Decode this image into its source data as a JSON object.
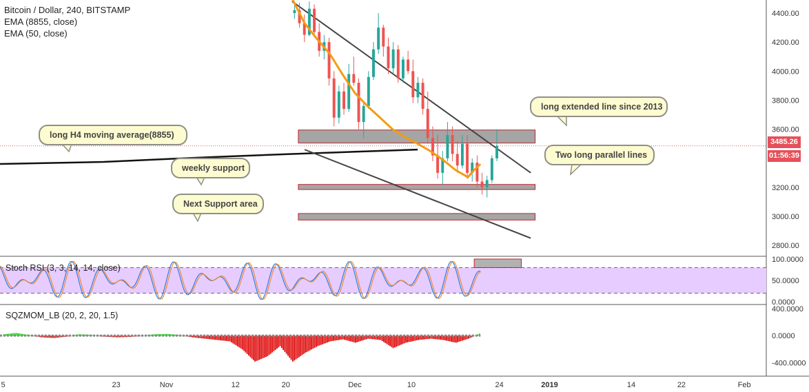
{
  "legend": {
    "symbol": "Bitcoin / Dollar, 240, BITSTAMP",
    "ema_long": "EMA (8855, close)",
    "ema_short": "EMA (50, close)"
  },
  "colors": {
    "up": "#26a69a",
    "down": "#ef5350",
    "ema50": "#f39c12",
    "ema8855": "#111111",
    "zone_fill": "#a5a5a5",
    "zone_border": "#c0232c",
    "price_tag": "#e5505a",
    "timer_tag": "#e5505a",
    "rsi_band": "#e6ccff",
    "sqz_pos": "#19e619",
    "sqz_neg": "#e01010"
  },
  "annotations": {
    "h4_ma": "long H4 moving average(8855)",
    "weekly_support": "weekly support",
    "next_support": "Next Support area",
    "line_2013": "long extended line since 2013",
    "parallel": "Two long parallel lines"
  },
  "price_axis": {
    "last_price": "3485.26",
    "countdown": "01:56:39"
  },
  "panels": {
    "stoch": "Stoch RSI (3, 3, 14, 14, close)",
    "sqz": "SQZMOM_LB (20, 2, 20, 1.5)"
  },
  "chart_data": {
    "type": "candlestick",
    "title": "Bitcoin / Dollar, 240, BITSTAMP",
    "price_range": [
      2730,
      4490
    ],
    "price_ticks": [
      "4400.00",
      "4200.00",
      "4000.00",
      "3800.00",
      "3600.00",
      "3400.00",
      "3200.00",
      "3000.00",
      "2800.00"
    ],
    "price_tick_values": [
      4400,
      4200,
      4000,
      3800,
      3600,
      3400,
      3200,
      3000,
      2800
    ],
    "x_ticks": [
      "5",
      "23",
      "Nov",
      "12",
      "20",
      "Dec",
      "10",
      "24",
      "2019",
      "14",
      "22",
      "Feb"
    ],
    "x_tick_days": [
      -26,
      -8,
      0,
      11,
      19,
      30,
      39,
      53,
      61,
      74,
      82,
      92
    ],
    "x_range_days": [
      -26.5,
      95.5
    ],
    "candle_day_range": [
      20,
      53
    ],
    "candles_ohlc": [
      [
        4400,
        4480,
        4360,
        4420
      ],
      [
        4420,
        4470,
        4300,
        4330
      ],
      [
        4330,
        4390,
        4200,
        4250
      ],
      [
        4250,
        4480,
        4240,
        4430
      ],
      [
        4430,
        4460,
        4250,
        4270
      ],
      [
        4270,
        4330,
        4100,
        4140
      ],
      [
        4140,
        4250,
        4080,
        4200
      ],
      [
        4200,
        4230,
        3900,
        3950
      ],
      [
        3950,
        4000,
        3620,
        3680
      ],
      [
        3680,
        3900,
        3640,
        3860
      ],
      [
        3860,
        3920,
        3700,
        3740
      ],
      [
        3740,
        4050,
        3720,
        3980
      ],
      [
        3980,
        4100,
        3900,
        3920
      ],
      [
        3920,
        3950,
        3600,
        3650
      ],
      [
        3650,
        3780,
        3540,
        3760
      ],
      [
        3760,
        4000,
        3740,
        3960
      ],
      [
        3960,
        4200,
        3940,
        4150
      ],
      [
        4150,
        4400,
        4120,
        4300
      ],
      [
        4300,
        4320,
        4100,
        4170
      ],
      [
        4170,
        4230,
        3980,
        4020
      ],
      [
        4020,
        4200,
        3980,
        4150
      ],
      [
        4150,
        4180,
        3920,
        3950
      ],
      [
        3950,
        4100,
        3920,
        4080
      ],
      [
        4080,
        4140,
        3980,
        4000
      ],
      [
        4000,
        4080,
        3780,
        3820
      ],
      [
        3820,
        3960,
        3780,
        3920
      ],
      [
        3920,
        3950,
        3700,
        3740
      ],
      [
        3740,
        3860,
        3500,
        3540
      ],
      [
        3540,
        3620,
        3380,
        3420
      ],
      [
        3420,
        3560,
        3260,
        3300
      ],
      [
        3300,
        3450,
        3220,
        3400
      ],
      [
        3400,
        3650,
        3380,
        3560
      ],
      [
        3560,
        3620,
        3380,
        3430
      ],
      [
        3430,
        3520,
        3300,
        3350
      ],
      [
        3350,
        3560,
        3330,
        3500
      ],
      [
        3500,
        3560,
        3260,
        3300
      ],
      [
        3300,
        3400,
        3240,
        3370
      ],
      [
        3370,
        3420,
        3200,
        3240
      ],
      [
        3240,
        3300,
        3150,
        3200
      ],
      [
        3200,
        3280,
        3130,
        3250
      ],
      [
        3250,
        3420,
        3230,
        3400
      ],
      [
        3400,
        3600,
        3380,
        3485.26
      ]
    ],
    "ema50": [
      [
        20,
        4500
      ],
      [
        22,
        4330
      ],
      [
        24,
        4220
      ],
      [
        26,
        4120
      ],
      [
        28,
        3980
      ],
      [
        30,
        3850
      ],
      [
        32,
        3760
      ],
      [
        34,
        3680
      ],
      [
        36,
        3600
      ],
      [
        38,
        3545
      ],
      [
        40,
        3500
      ],
      [
        42,
        3450
      ],
      [
        44,
        3390
      ],
      [
        46,
        3320
      ],
      [
        48,
        3270
      ],
      [
        49,
        3320
      ],
      [
        50,
        3360
      ]
    ],
    "ema8855": [
      [
        -26.5,
        3361
      ],
      [
        -10,
        3375
      ],
      [
        0,
        3395
      ],
      [
        10,
        3413
      ],
      [
        20,
        3430
      ],
      [
        32,
        3448
      ],
      [
        40,
        3460
      ]
    ],
    "trendlines": [
      {
        "name": "upper",
        "from": [
          20,
          4480
        ],
        "to": [
          58,
          3300
        ]
      },
      {
        "name": "lower",
        "from": [
          22,
          3460
        ],
        "to": [
          58,
          2850
        ]
      }
    ],
    "zones": [
      {
        "name": "resistance",
        "x0": 21,
        "x1": 58.7,
        "y_top": 3595,
        "y_bottom": 3505
      },
      {
        "name": "weekly-support",
        "x0": 21,
        "x1": 58.7,
        "y_top": 3220,
        "y_bottom": 3185
      },
      {
        "name": "next-support",
        "x0": 21,
        "x1": 58.7,
        "y_top": 3020,
        "y_bottom": 2975
      }
    ],
    "stoch_rsi": {
      "range": [
        0,
        100
      ],
      "ticks": [
        "100.0000",
        "50.0000",
        "0.0000"
      ],
      "tick_values": [
        100,
        50,
        0
      ],
      "bands": [
        80,
        20
      ],
      "zone": {
        "x0": 49,
        "x1": 56.5,
        "y_top": 100,
        "y_bottom": 80
      }
    },
    "sqzmom": {
      "range": [
        -600,
        450
      ],
      "ticks": [
        "400.0000",
        "0.0000",
        "-400.0000"
      ],
      "tick_values": [
        400,
        0,
        -400
      ],
      "values": [
        [
          -26,
          20
        ],
        [
          -24,
          40
        ],
        [
          -22,
          10
        ],
        [
          -20,
          -20
        ],
        [
          -18,
          -30
        ],
        [
          -16,
          -10
        ],
        [
          -14,
          20
        ],
        [
          -12,
          10
        ],
        [
          -10,
          -10
        ],
        [
          -8,
          -20
        ],
        [
          -6,
          -15
        ],
        [
          -4,
          0
        ],
        [
          -2,
          20
        ],
        [
          0,
          25
        ],
        [
          2,
          10
        ],
        [
          4,
          -20
        ],
        [
          6,
          -40
        ],
        [
          8,
          -60
        ],
        [
          10,
          -80
        ],
        [
          12,
          -200
        ],
        [
          14,
          -380
        ],
        [
          16,
          -300
        ],
        [
          18,
          -150
        ],
        [
          20,
          -380
        ],
        [
          22,
          -250
        ],
        [
          24,
          -150
        ],
        [
          26,
          -80
        ],
        [
          28,
          -50
        ],
        [
          30,
          -100
        ],
        [
          32,
          -40
        ],
        [
          34,
          -60
        ],
        [
          36,
          -180
        ],
        [
          38,
          -100
        ],
        [
          40,
          -60
        ],
        [
          42,
          -40
        ],
        [
          44,
          -60
        ],
        [
          46,
          -100
        ],
        [
          48,
          -40
        ],
        [
          50,
          40
        ]
      ]
    }
  }
}
